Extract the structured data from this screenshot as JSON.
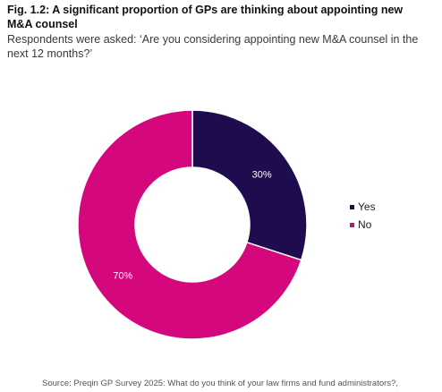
{
  "title": "Fig. 1.2: A significant proportion of GPs are thinking about appointing new M&A counsel",
  "subtitle": "Respondents were asked: ‘Are you considering appointing new M&A counsel in the next 12 months?’",
  "source": "Source: Preqin GP Survey 2025: What do you think of your law firms and fund administrators?,",
  "colors": {
    "yes": "#1f0c4e",
    "no": "#d4077c"
  },
  "chart_data": {
    "type": "pie",
    "donut": true,
    "categories": [
      "Yes",
      "No"
    ],
    "values": [
      30,
      70
    ],
    "labels": [
      "30%",
      "70%"
    ],
    "colors": [
      "#1f0c4e",
      "#d4077c"
    ],
    "legend_position": "right",
    "title": "Fig. 1.2: A significant proportion of GPs are thinking about appointing new M&A counsel"
  }
}
